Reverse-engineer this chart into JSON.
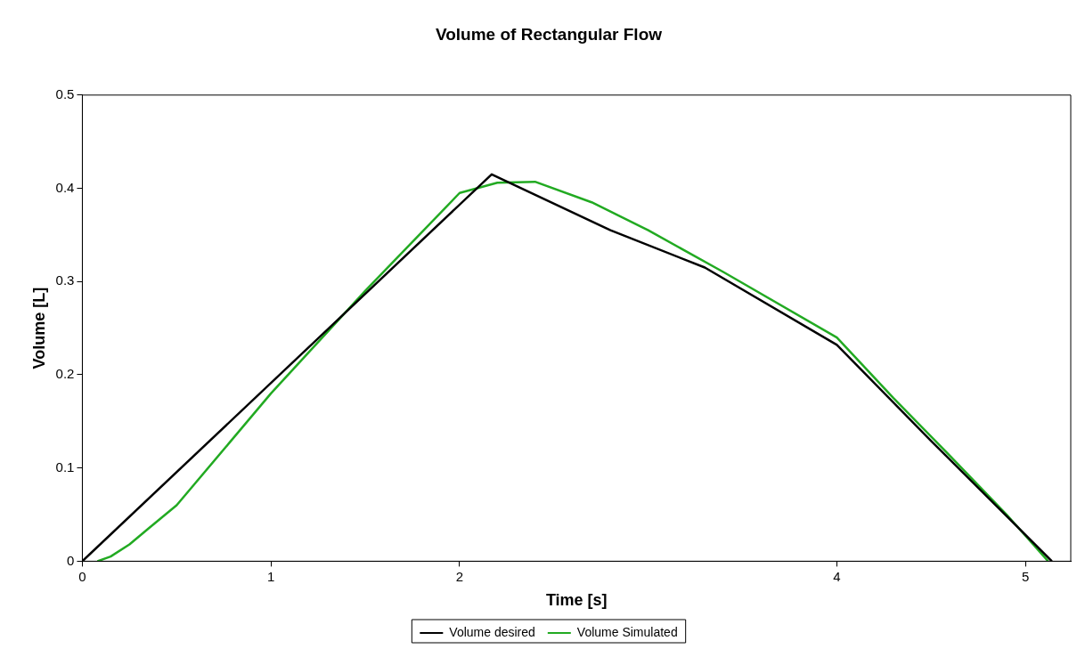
{
  "chart_data": {
    "type": "line",
    "title": "Volume of Rectangular Flow",
    "xlabel": "Time [s]",
    "ylabel": "Volume [L]",
    "xlim": [
      0,
      5.24
    ],
    "xticks": [
      0,
      1,
      2,
      4,
      5
    ],
    "ylim": [
      0,
      0.5
    ],
    "yticks": [
      0,
      0.1,
      0.2,
      0.3,
      0.4,
      0.5
    ],
    "grid": false,
    "legend": "bottom",
    "marker": "none",
    "line_style": "solid",
    "series": [
      {
        "name": "Volume desired",
        "color": "#000000",
        "x": [
          0,
          2.17,
          2.8,
          3.3,
          4.0,
          4.5,
          5.14
        ],
        "values": [
          0,
          0.415,
          0.355,
          0.315,
          0.232,
          0.129,
          0
        ]
      },
      {
        "name": "Volume Simulated",
        "color": "#22aa22",
        "x": [
          0.08,
          0.15,
          0.25,
          0.35,
          0.5,
          1.0,
          1.5,
          2.0,
          2.2,
          2.4,
          2.7,
          3.0,
          3.4,
          4.0,
          4.3,
          4.6,
          4.9,
          5.12
        ],
        "values": [
          0,
          0.005,
          0.018,
          0.035,
          0.06,
          0.18,
          0.29,
          0.395,
          0.406,
          0.407,
          0.385,
          0.355,
          0.31,
          0.24,
          0.175,
          0.113,
          0.05,
          0
        ]
      }
    ]
  }
}
